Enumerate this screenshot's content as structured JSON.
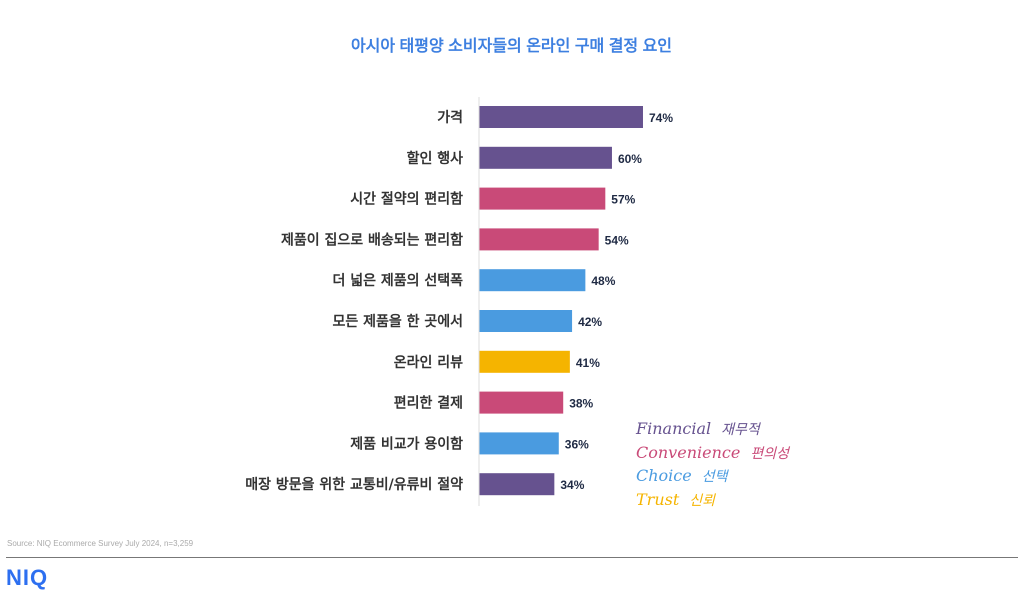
{
  "chart_data": {
    "type": "bar",
    "orientation": "horizontal",
    "title": "아시아 태평양 소비자들의 온라인 구매 결정 요인",
    "categories": [
      "가격",
      "할인 행사",
      "시간 절약의 편리함",
      "제품이 집으로 배송되는 편리함",
      "더 넓은 제품의 선택폭",
      "모든 제품을 한 곳에서",
      "온라인 리뷰",
      "편리한 결제",
      "제품 비교가 용이함",
      "매장 방문을 위한 교통비/유류비 절약"
    ],
    "values": [
      74,
      60,
      57,
      54,
      48,
      42,
      41,
      38,
      36,
      34
    ],
    "value_labels": [
      "74%",
      "60%",
      "57%",
      "54%",
      "48%",
      "42%",
      "41%",
      "38%",
      "36%",
      "34%"
    ],
    "groups": [
      "financial",
      "financial",
      "convenience",
      "convenience",
      "choice",
      "choice",
      "trust",
      "convenience",
      "choice",
      "financial"
    ],
    "xlim": [
      0,
      100
    ],
    "xlabel": "",
    "ylabel": "",
    "grid": false,
    "legend_position": "bottom-right",
    "legend": [
      {
        "key": "financial",
        "en": "Financial",
        "ko": "재무적",
        "color": "#66528f"
      },
      {
        "key": "convenience",
        "en": "Convenience",
        "ko": "편의성",
        "color": "#c94a78"
      },
      {
        "key": "choice",
        "en": "Choice",
        "ko": "선택",
        "color": "#4a9be0"
      },
      {
        "key": "trust",
        "en": "Trust",
        "ko": "신뢰",
        "color": "#f5b400"
      }
    ]
  },
  "footer": {
    "source": "Source: NIQ Ecommerce Survey July 2024, n=3,259",
    "logo": "NIQ"
  }
}
